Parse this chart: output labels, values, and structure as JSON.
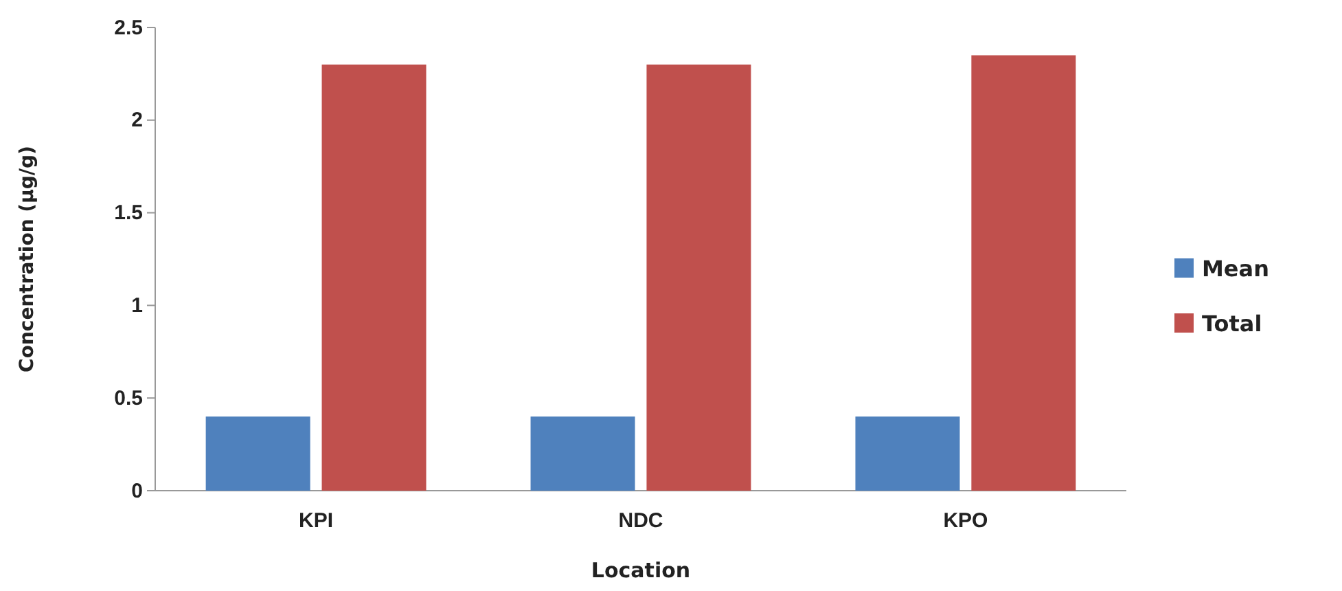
{
  "chart_data": {
    "type": "bar",
    "xlabel": "Location",
    "ylabel": "Concentration (µg/g)",
    "categories": [
      "KPI",
      "NDC",
      "KPO"
    ],
    "series": [
      {
        "name": "Mean",
        "color": "#4f81bd",
        "values": [
          0.4,
          0.4,
          0.4
        ]
      },
      {
        "name": "Total",
        "color": "#c0504d",
        "values": [
          2.3,
          2.3,
          2.35
        ]
      }
    ],
    "ylim": [
      0,
      2.5
    ],
    "yticks": [
      0,
      0.5,
      1,
      1.5,
      2,
      2.5
    ],
    "grid": false,
    "legend": "right"
  }
}
